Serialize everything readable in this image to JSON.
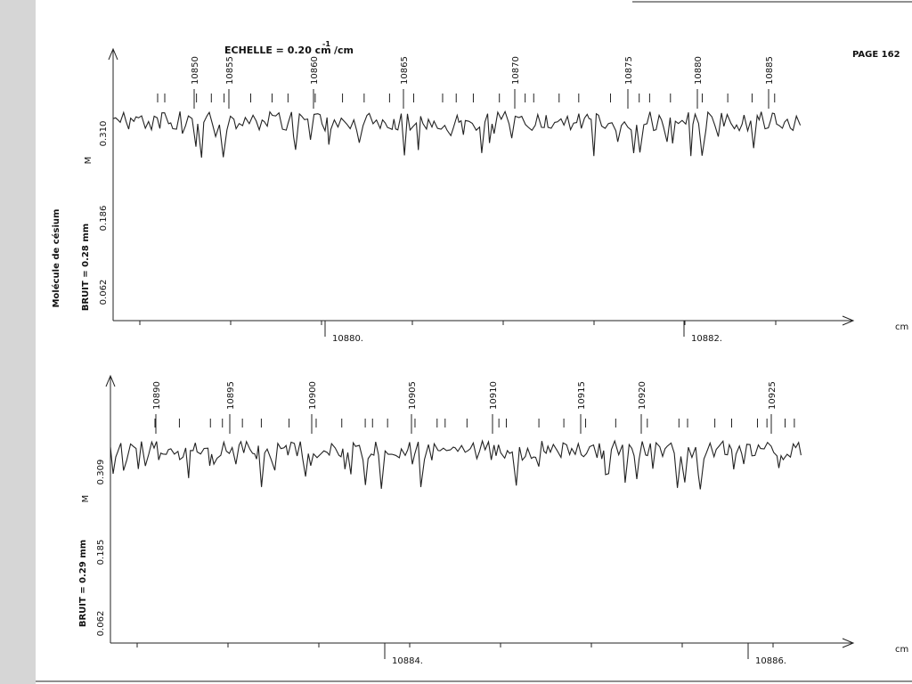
{
  "header": {
    "scale_label": "ECHELLE = 0.20 cm",
    "scale_exp": "-1",
    "scale_unit": "/cm",
    "page": "PAGE 162"
  },
  "side_label": "Molécule de césium",
  "panels": [
    {
      "noise": "BRUIT = 0.28 mm",
      "y_label": "M",
      "y_ticks": [
        "0.310",
        "0.186",
        "0.062"
      ],
      "x_ticks": [
        "10880.",
        "10882."
      ],
      "x_unit": "cm",
      "line_labels": [
        "10850",
        "10855",
        "10860",
        "10865",
        "10870",
        "10875",
        "10880",
        "10885"
      ]
    },
    {
      "noise": "BRUIT = 0.29 mm",
      "y_label": "M",
      "y_ticks": [
        "0.309",
        "0.185",
        "0.062"
      ],
      "x_ticks": [
        "10884.",
        "10886."
      ],
      "x_unit": "cm",
      "line_labels": [
        "10890",
        "10895",
        "10900",
        "10905",
        "10910",
        "10915",
        "10920",
        "10925"
      ]
    }
  ]
}
